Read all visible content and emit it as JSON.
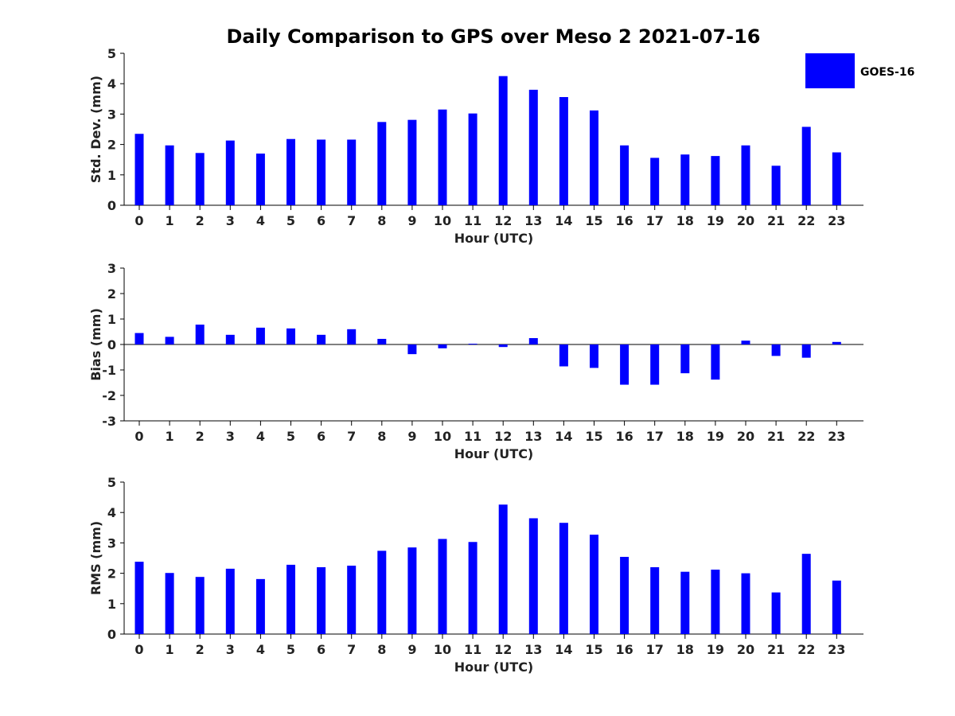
{
  "title": "Daily Comparison to GPS over Meso 2 2021-07-16",
  "legend": {
    "label": "GOES-16",
    "color": "#0000ff"
  },
  "chart_data": [
    {
      "type": "bar",
      "ylabel": "Std. Dev. (mm)",
      "xlabel": "Hour (UTC)",
      "ylim": [
        0,
        5
      ],
      "yticks": [
        0,
        1,
        2,
        3,
        4,
        5
      ],
      "categories": [
        "0",
        "1",
        "2",
        "3",
        "4",
        "5",
        "6",
        "7",
        "8",
        "9",
        "10",
        "11",
        "12",
        "13",
        "14",
        "15",
        "16",
        "17",
        "18",
        "19",
        "20",
        "21",
        "22",
        "23"
      ],
      "series": [
        {
          "name": "GOES-16",
          "color": "#0000ff",
          "values": [
            2.35,
            1.97,
            1.72,
            2.13,
            1.7,
            2.18,
            2.16,
            2.16,
            2.74,
            2.81,
            3.15,
            3.02,
            4.25,
            3.8,
            3.56,
            3.12,
            1.97,
            1.56,
            1.67,
            1.62,
            1.97,
            1.3,
            2.58,
            1.74
          ]
        }
      ]
    },
    {
      "type": "bar",
      "ylabel": "Bias (mm)",
      "xlabel": "Hour (UTC)",
      "ylim": [
        -3,
        3
      ],
      "yticks": [
        -3,
        -2,
        -1,
        0,
        1,
        2,
        3
      ],
      "categories": [
        "0",
        "1",
        "2",
        "3",
        "4",
        "5",
        "6",
        "7",
        "8",
        "9",
        "10",
        "11",
        "12",
        "13",
        "14",
        "15",
        "16",
        "17",
        "18",
        "19",
        "20",
        "21",
        "22",
        "23"
      ],
      "series": [
        {
          "name": "GOES-16",
          "color": "#0000ff",
          "values": [
            0.45,
            0.3,
            0.78,
            0.38,
            0.66,
            0.63,
            0.38,
            0.6,
            0.22,
            -0.38,
            -0.15,
            0.03,
            -0.1,
            0.25,
            -0.86,
            -0.92,
            -1.58,
            -1.58,
            -1.13,
            -1.38,
            0.15,
            -0.45,
            -0.52,
            0.1
          ]
        }
      ]
    },
    {
      "type": "bar",
      "ylabel": "RMS (mm)",
      "xlabel": "Hour (UTC)",
      "ylim": [
        0,
        5
      ],
      "yticks": [
        0,
        1,
        2,
        3,
        4,
        5
      ],
      "categories": [
        "0",
        "1",
        "2",
        "3",
        "4",
        "5",
        "6",
        "7",
        "8",
        "9",
        "10",
        "11",
        "12",
        "13",
        "14",
        "15",
        "16",
        "17",
        "18",
        "19",
        "20",
        "21",
        "22",
        "23"
      ],
      "series": [
        {
          "name": "GOES-16",
          "color": "#0000ff",
          "values": [
            2.38,
            2.01,
            1.88,
            2.15,
            1.81,
            2.28,
            2.2,
            2.25,
            2.74,
            2.85,
            3.13,
            3.03,
            4.26,
            3.81,
            3.66,
            3.27,
            2.54,
            2.2,
            2.05,
            2.12,
            2.0,
            1.37,
            2.64,
            1.76
          ]
        }
      ]
    }
  ]
}
